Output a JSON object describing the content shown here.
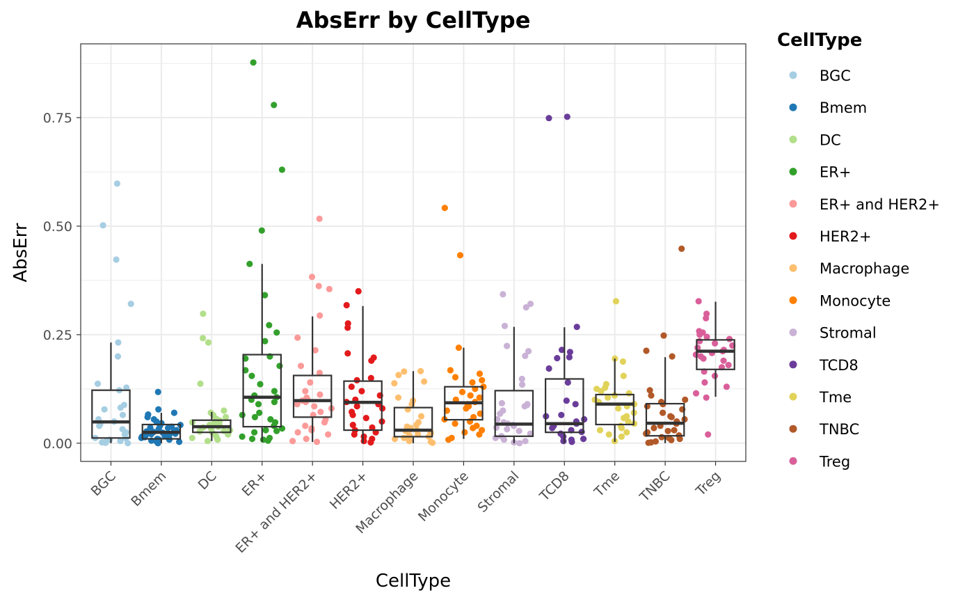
{
  "chart_data": {
    "type": "box",
    "title": "AbsErr by CellType",
    "xlabel": "CellType",
    "ylabel": "AbsErr",
    "ylim": [
      -0.042,
      0.92
    ],
    "yticks": [
      "0.00",
      "0.25",
      "0.50",
      "0.75"
    ],
    "ytick_values": [
      0,
      0.25,
      0.5,
      0.75
    ],
    "grid": true,
    "legend": {
      "title": "CellType",
      "position": "right"
    },
    "categories": [
      "BGC",
      "Bmem",
      "DC",
      "ER+",
      "ER+ and HER2+",
      "HER2+",
      "Macrophage",
      "Monocyte",
      "Stromal",
      "TCD8",
      "Tme",
      "TNBC",
      "Treg"
    ],
    "colors": [
      "#A6CEE3",
      "#1F78B4",
      "#B2DF8A",
      "#33A02C",
      "#FB9A99",
      "#E31A1C",
      "#FDBF6F",
      "#FF7F00",
      "#CAB2D6",
      "#6A3D9A",
      "#E1D35A",
      "#B15928",
      "#D95F9A"
    ],
    "series": [
      {
        "name": "BGC",
        "box": {
          "q1": 0.012,
          "median": 0.049,
          "q3": 0.122,
          "whisker_low": 0.0,
          "whisker_high": 0.232
        },
        "points": [
          0.598,
          0.502,
          0.423,
          0.321,
          0.232,
          0.2,
          0.137,
          0.128,
          0.122,
          0.088,
          0.082,
          0.078,
          0.065,
          0.055,
          0.05,
          0.044,
          0.04,
          0.032,
          0.025,
          0.02,
          0.012,
          0.008,
          0.005,
          0.003,
          0.002,
          0.001,
          0.0,
          0.011
        ]
      },
      {
        "name": "Bmem",
        "box": {
          "q1": 0.01,
          "median": 0.025,
          "q3": 0.043,
          "whisker_low": 0.0,
          "whisker_high": 0.07
        },
        "points": [
          0.118,
          0.078,
          0.07,
          0.066,
          0.06,
          0.055,
          0.05,
          0.046,
          0.042,
          0.04,
          0.038,
          0.036,
          0.033,
          0.03,
          0.028,
          0.026,
          0.024,
          0.022,
          0.02,
          0.018,
          0.016,
          0.014,
          0.012,
          0.01,
          0.008,
          0.006,
          0.004,
          0.002,
          0.0,
          0.003,
          0.009,
          0.015,
          0.021,
          0.027,
          0.035,
          0.012
        ]
      },
      {
        "name": "DC",
        "box": {
          "q1": 0.025,
          "median": 0.038,
          "q3": 0.053,
          "whisker_low": 0.005,
          "whisker_high": 0.072
        },
        "points": [
          0.298,
          0.242,
          0.232,
          0.137,
          0.075,
          0.07,
          0.065,
          0.06,
          0.056,
          0.052,
          0.048,
          0.045,
          0.042,
          0.04,
          0.038,
          0.036,
          0.033,
          0.03,
          0.027,
          0.024,
          0.02,
          0.016,
          0.012,
          0.01,
          0.008,
          0.005,
          0.028,
          0.044
        ]
      },
      {
        "name": "ER+",
        "box": {
          "q1": 0.038,
          "median": 0.106,
          "q3": 0.204,
          "whisker_low": 0.003,
          "whisker_high": 0.413
        },
        "points": [
          0.877,
          0.779,
          0.63,
          0.49,
          0.413,
          0.341,
          0.272,
          0.255,
          0.235,
          0.2,
          0.195,
          0.178,
          0.168,
          0.155,
          0.136,
          0.12,
          0.11,
          0.106,
          0.1,
          0.095,
          0.09,
          0.07,
          0.065,
          0.06,
          0.055,
          0.048,
          0.04,
          0.034,
          0.03,
          0.028,
          0.025,
          0.015,
          0.01,
          0.008,
          0.006,
          0.012
        ]
      },
      {
        "name": "ER+ and HER2+",
        "box": {
          "q1": 0.06,
          "median": 0.098,
          "q3": 0.156,
          "whisker_low": 0.003,
          "whisker_high": 0.292
        },
        "points": [
          0.517,
          0.383,
          0.362,
          0.355,
          0.294,
          0.243,
          0.214,
          0.178,
          0.162,
          0.14,
          0.12,
          0.112,
          0.105,
          0.1,
          0.098,
          0.095,
          0.09,
          0.085,
          0.08,
          0.072,
          0.065,
          0.055,
          0.048,
          0.04,
          0.034,
          0.03,
          0.025,
          0.02,
          0.01,
          0.005,
          0.003
        ]
      },
      {
        "name": "HER2+",
        "box": {
          "q1": 0.03,
          "median": 0.094,
          "q3": 0.143,
          "whisker_low": 0.0,
          "whisker_high": 0.316
        },
        "points": [
          0.35,
          0.318,
          0.276,
          0.266,
          0.207,
          0.197,
          0.19,
          0.15,
          0.145,
          0.13,
          0.12,
          0.11,
          0.1,
          0.095,
          0.09,
          0.085,
          0.08,
          0.072,
          0.065,
          0.058,
          0.05,
          0.042,
          0.036,
          0.03,
          0.025,
          0.02,
          0.015,
          0.01,
          0.005,
          0.002
        ]
      },
      {
        "name": "Macrophage",
        "box": {
          "q1": 0.015,
          "median": 0.03,
          "q3": 0.082,
          "whisker_low": 0.0,
          "whisker_high": 0.166
        },
        "points": [
          0.166,
          0.165,
          0.157,
          0.142,
          0.138,
          0.105,
          0.098,
          0.09,
          0.078,
          0.062,
          0.048,
          0.042,
          0.038,
          0.035,
          0.032,
          0.03,
          0.028,
          0.025,
          0.022,
          0.02,
          0.018,
          0.015,
          0.012,
          0.01,
          0.008,
          0.005,
          0.003,
          0.001
        ]
      },
      {
        "name": "Monocyte",
        "box": {
          "q1": 0.054,
          "median": 0.093,
          "q3": 0.13,
          "whisker_low": 0.01,
          "whisker_high": 0.22
        },
        "points": [
          0.542,
          0.433,
          0.22,
          0.168,
          0.16,
          0.152,
          0.145,
          0.14,
          0.13,
          0.125,
          0.118,
          0.11,
          0.105,
          0.1,
          0.095,
          0.09,
          0.085,
          0.08,
          0.075,
          0.068,
          0.06,
          0.055,
          0.05,
          0.045,
          0.04,
          0.035,
          0.03,
          0.025,
          0.02,
          0.012,
          0.008
        ]
      },
      {
        "name": "Stromal",
        "box": {
          "q1": 0.016,
          "median": 0.044,
          "q3": 0.121,
          "whisker_low": 0.0,
          "whisker_high": 0.268
        },
        "points": [
          0.343,
          0.321,
          0.313,
          0.27,
          0.224,
          0.212,
          0.201,
          0.148,
          0.135,
          0.092,
          0.09,
          0.088,
          0.085,
          0.075,
          0.068,
          0.055,
          0.048,
          0.045,
          0.042,
          0.04,
          0.036,
          0.032,
          0.028,
          0.022,
          0.016,
          0.012,
          0.008,
          0.005,
          0.002,
          0.0
        ]
      },
      {
        "name": "TCD8",
        "box": {
          "q1": 0.025,
          "median": 0.045,
          "q3": 0.148,
          "whisker_low": 0.0,
          "whisker_high": 0.267
        },
        "points": [
          0.752,
          0.749,
          0.268,
          0.215,
          0.21,
          0.198,
          0.196,
          0.172,
          0.14,
          0.098,
          0.09,
          0.065,
          0.062,
          0.055,
          0.05,
          0.045,
          0.04,
          0.035,
          0.03,
          0.026,
          0.022,
          0.015,
          0.01,
          0.008,
          0.005,
          0.003
        ]
      },
      {
        "name": "Tme",
        "box": {
          "q1": 0.043,
          "median": 0.09,
          "q3": 0.112,
          "whisker_low": 0.003,
          "whisker_high": 0.195
        },
        "points": [
          0.327,
          0.195,
          0.188,
          0.155,
          0.136,
          0.128,
          0.125,
          0.12,
          0.115,
          0.11,
          0.105,
          0.1,
          0.095,
          0.09,
          0.085,
          0.08,
          0.07,
          0.062,
          0.058,
          0.05,
          0.045,
          0.04,
          0.035,
          0.03,
          0.025,
          0.02,
          0.015,
          0.005
        ]
      },
      {
        "name": "TNBC",
        "box": {
          "q1": 0.017,
          "median": 0.046,
          "q3": 0.091,
          "whisker_low": 0.0,
          "whisker_high": 0.198
        },
        "points": [
          0.448,
          0.248,
          0.213,
          0.2,
          0.122,
          0.11,
          0.1,
          0.095,
          0.09,
          0.085,
          0.078,
          0.07,
          0.062,
          0.055,
          0.05,
          0.045,
          0.04,
          0.035,
          0.03,
          0.025,
          0.022,
          0.018,
          0.014,
          0.01,
          0.007,
          0.004,
          0.002,
          0.001,
          0.012,
          0.028,
          0.06
        ]
      },
      {
        "name": "Treg",
        "box": {
          "q1": 0.17,
          "median": 0.212,
          "q3": 0.238,
          "whisker_low": 0.107,
          "whisker_high": 0.326
        },
        "points": [
          0.327,
          0.298,
          0.288,
          0.258,
          0.255,
          0.25,
          0.245,
          0.24,
          0.235,
          0.23,
          0.225,
          0.22,
          0.215,
          0.212,
          0.208,
          0.204,
          0.2,
          0.195,
          0.19,
          0.18,
          0.175,
          0.165,
          0.155,
          0.14,
          0.13,
          0.115,
          0.105,
          0.02
        ]
      }
    ]
  }
}
